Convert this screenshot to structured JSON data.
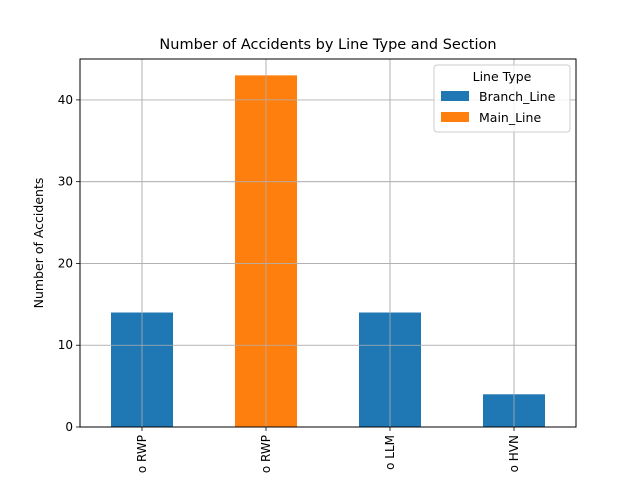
{
  "chart_data": {
    "type": "bar",
    "title": "Number of Accidents by Line Type and Section",
    "xlabel": "",
    "ylabel": "Number of Accidents",
    "categories": [
      "o RWP",
      "o RWP",
      "o LLM",
      "o HVN"
    ],
    "ylim": [
      0,
      45
    ],
    "yticks": [
      0,
      10,
      20,
      30,
      40
    ],
    "grid": true,
    "legend": {
      "title": "Line Type",
      "placement": "top-right"
    },
    "series": [
      {
        "name": "Branch_Line",
        "color": "#1f77b4",
        "values": [
          14,
          null,
          14,
          4
        ]
      },
      {
        "name": "Main_Line",
        "color": "#ff7f0e",
        "values": [
          null,
          43,
          null,
          null
        ]
      }
    ]
  }
}
